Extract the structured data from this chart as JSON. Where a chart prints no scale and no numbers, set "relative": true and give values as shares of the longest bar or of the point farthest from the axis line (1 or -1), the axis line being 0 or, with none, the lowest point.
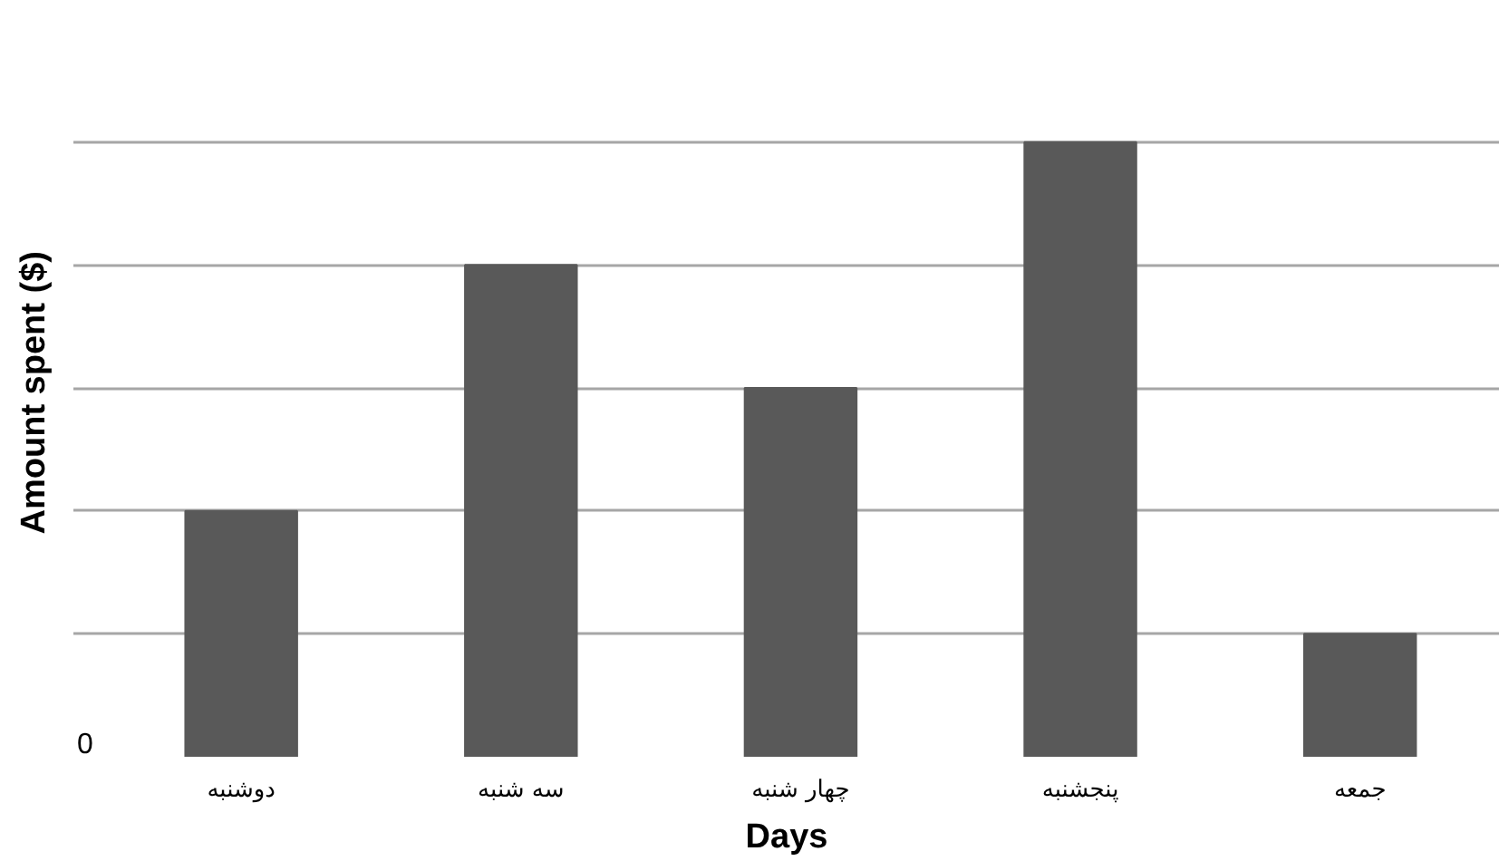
{
  "chart_data": {
    "type": "bar",
    "xlabel": "Days",
    "ylabel": "Amount  spent ($)",
    "categories": [
      "دوشنبه",
      "سه شنبه",
      "چهار شنبه",
      "پنجشنبه",
      "جمعه"
    ],
    "values": [
      0.4,
      0.8,
      0.6,
      1,
      0.2
    ],
    "color": "#595959",
    "relative": true,
    "annotations": [
      "0"
    ],
    "grid": "y"
  }
}
